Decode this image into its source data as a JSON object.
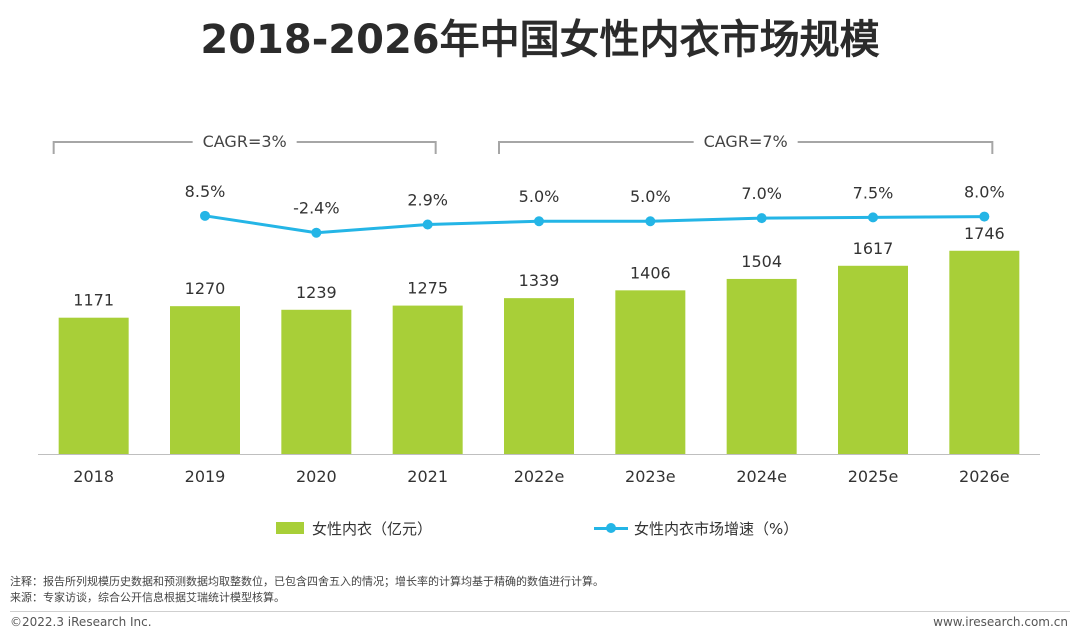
{
  "title": "2018-2026年中国女性内衣市场规模",
  "chart_data": {
    "type": "bar",
    "categories": [
      "2018",
      "2019",
      "2020",
      "2021",
      "2022e",
      "2023e",
      "2024e",
      "2025e",
      "2026e"
    ],
    "ylim": [
      0,
      1800
    ],
    "series": [
      {
        "name": "女性内衣（亿元）",
        "type": "bar",
        "color": "#a8cf38",
        "values": [
          1171,
          1270,
          1239,
          1275,
          1339,
          1406,
          1504,
          1617,
          1746
        ],
        "labels": [
          "1171",
          "1270",
          "1239",
          "1275",
          "1339",
          "1406",
          "1504",
          "1617",
          "1746"
        ]
      },
      {
        "name": "女性内衣市场增速（%）",
        "type": "line",
        "color": "#24b5e6",
        "values": [
          null,
          8.5,
          -2.4,
          2.9,
          5.0,
          5.0,
          7.0,
          7.5,
          8.0
        ],
        "labels": [
          "",
          "8.5%",
          "-2.4%",
          "2.9%",
          "5.0%",
          "5.0%",
          "7.0%",
          "7.5%",
          "8.0%"
        ]
      }
    ],
    "annotations": [
      {
        "text": "CAGR=3%",
        "from_category": "2018",
        "to_category": "2021"
      },
      {
        "text": "CAGR=7%",
        "from_category": "2022e",
        "to_category": "2026e"
      }
    ],
    "legend_position": "bottom",
    "grid": false
  },
  "notes": {
    "note": "注释：报告所列规模历史数据和预测数据均取整数位，已包含四舍五入的情况；增长率的计算均基于精确的数值进行计算。",
    "source": "来源：专家访谈，综合公开信息根据艾瑞统计模型核算。"
  },
  "footer": {
    "copyright": "©2022.3 iResearch Inc.",
    "website": "www.iresearch.com.cn"
  }
}
